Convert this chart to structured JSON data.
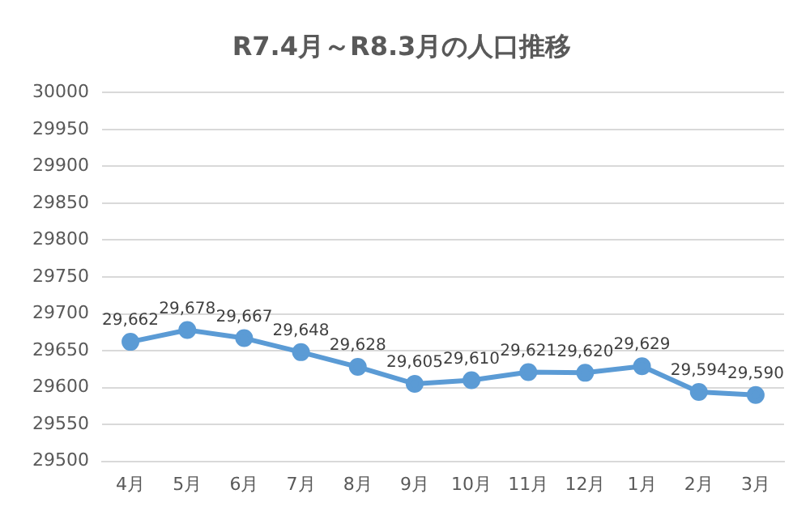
{
  "chart_data": {
    "type": "line",
    "title": "R7.4月～R8.3月の人口推移",
    "categories": [
      "4月",
      "5月",
      "6月",
      "7月",
      "8月",
      "9月",
      "10月",
      "11月",
      "12月",
      "1月",
      "2月",
      "3月"
    ],
    "series": [
      {
        "color": "#5b9bd5",
        "values": [
          29662,
          29678,
          29667,
          29648,
          29628,
          29605,
          29610,
          29621,
          29620,
          29629,
          29594,
          29590
        ],
        "value_labels": [
          "29,662",
          "29,678",
          "29,667",
          "29,648",
          "29,628",
          "29,605",
          "29,610",
          "29,621",
          "29,620",
          "29,629",
          "29,594",
          "29,590"
        ]
      }
    ],
    "ylim": [
      29500,
      30000
    ],
    "yticks": [
      29500,
      29550,
      29600,
      29650,
      29700,
      29750,
      29800,
      29850,
      29900,
      29950,
      30000
    ],
    "grid": "y",
    "legend": false,
    "marker": "circle",
    "line_style": "solid"
  }
}
